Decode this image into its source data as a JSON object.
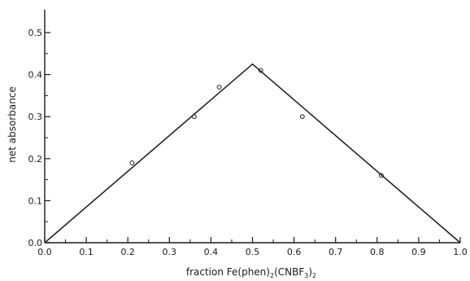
{
  "chart_data": {
    "type": "scatter",
    "title": "",
    "xlabel": "fraction Fe(phen)₂(CNBF₃)₂",
    "xlabel_parts": {
      "prefix": "fraction Fe(phen)",
      "sub1": "2",
      "middle": "(CNBF",
      "sub2": "3",
      "close": ")",
      "sub3": "2"
    },
    "ylabel": "net absorbance",
    "xlim": [
      0.0,
      1.0
    ],
    "ylim": [
      0.0,
      0.55
    ],
    "x_ticks": [
      "0.0",
      "0.1",
      "0.2",
      "0.3",
      "0.4",
      "0.5",
      "0.6",
      "0.7",
      "0.8",
      "0.9",
      "1.0"
    ],
    "y_ticks": [
      "0.0",
      "0.1",
      "0.2",
      "0.3",
      "0.4",
      "0.5"
    ],
    "grid": false,
    "series": [
      {
        "type": "scatter",
        "marker": "open-circle",
        "x": [
          0.21,
          0.36,
          0.42,
          0.52,
          0.62,
          0.81
        ],
        "y": [
          0.19,
          0.3,
          0.37,
          0.41,
          0.3,
          0.16
        ]
      },
      {
        "type": "line",
        "x": [
          0.0,
          0.5,
          1.0
        ],
        "y": [
          0.0,
          0.425,
          0.0
        ]
      }
    ],
    "colors": {
      "ink": "#1a1a1a",
      "background": "#ffffff"
    }
  }
}
